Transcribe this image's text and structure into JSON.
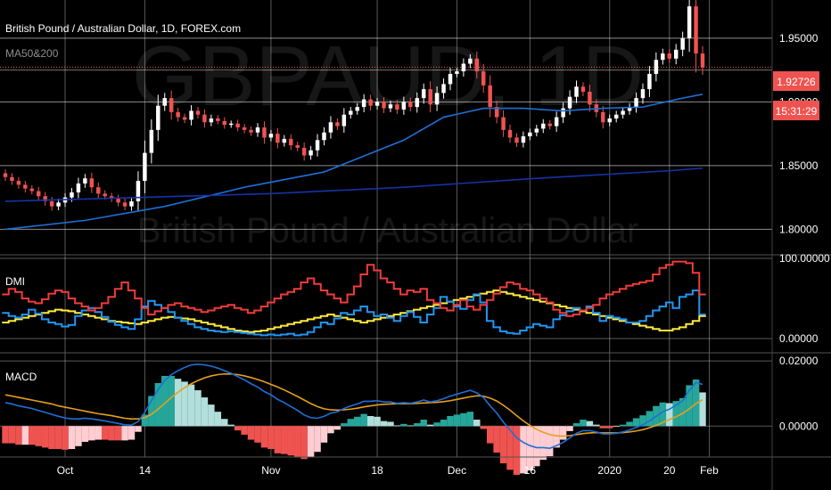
{
  "header": {
    "title": "British Pound / Australian Dollar, 1D, FOREX.com",
    "ma_label": "MA50&200"
  },
  "watermark": {
    "symbol": "GBPAUD, 1D",
    "name": "British Pound / Australian Dollar"
  },
  "price_badges": {
    "last_price": "1.92726",
    "countdown": "15:31:29",
    "color": "#ef5350"
  },
  "colors": {
    "up": "#ffffff",
    "down": "#ef5350",
    "ma50": "#1e6fd8",
    "ma200": "#1533a8",
    "dmi_plus": "#2196f3",
    "dmi_minus": "#f23b3b",
    "adx": "#ffeb3b",
    "macd": "#1e6fd8",
    "signal": "#e5a01e",
    "hist_up_strong": "#26a69a",
    "hist_up_weak": "#b2dfdb",
    "hist_down_strong": "#ef5350",
    "hist_down_weak": "#ffcdd2"
  },
  "chart_data": [
    {
      "type": "candlestick",
      "name": "price",
      "title": "British Pound / Australian Dollar, 1D, FOREX.com",
      "ylim": [
        1.78,
        1.98
      ],
      "y_ticks": [
        "1.95000",
        "1.90000",
        "1.85000",
        "1.80000"
      ],
      "x_ticks": [
        "Oct",
        "14",
        "Nov",
        "18",
        "Dec",
        "16",
        "2020",
        "20",
        "Feb"
      ],
      "closes": [
        1.841,
        1.838,
        1.835,
        1.832,
        1.83,
        1.826,
        1.822,
        1.818,
        1.821,
        1.825,
        1.829,
        1.836,
        1.84,
        1.833,
        1.828,
        1.826,
        1.824,
        1.821,
        1.818,
        1.822,
        1.838,
        1.86,
        1.878,
        1.897,
        1.903,
        1.892,
        1.888,
        1.886,
        1.893,
        1.89,
        1.884,
        1.887,
        1.885,
        1.882,
        1.883,
        1.88,
        1.878,
        1.876,
        1.88,
        1.872,
        1.875,
        1.868,
        1.871,
        1.866,
        1.864,
        1.858,
        1.862,
        1.87,
        1.876,
        1.884,
        1.881,
        1.89,
        1.893,
        1.896,
        1.902,
        1.897,
        1.9,
        1.895,
        1.898,
        1.894,
        1.9,
        1.896,
        1.903,
        1.91,
        1.898,
        1.907,
        1.914,
        1.922,
        1.924,
        1.93,
        1.934,
        1.924,
        1.913,
        1.896,
        1.888,
        1.878,
        1.872,
        1.868,
        1.873,
        1.876,
        1.879,
        1.883,
        1.881,
        1.888,
        1.895,
        1.904,
        1.912,
        1.908,
        1.898,
        1.892,
        1.884,
        1.887,
        1.89,
        1.893,
        1.896,
        1.903,
        1.91,
        1.922,
        1.933,
        1.938,
        1.934,
        1.941,
        1.95,
        1.975,
        1.938,
        1.927
      ]
    },
    {
      "type": "line",
      "name": "MA50&200",
      "series": [
        {
          "name": "",
          "x_index": [
            0,
            12,
            24,
            36,
            48,
            60,
            66,
            72,
            78,
            84,
            90,
            96,
            102,
            105
          ],
          "values": [
            1.8,
            1.807,
            1.818,
            1.833,
            1.845,
            1.87,
            1.888,
            1.895,
            1.895,
            1.893,
            1.895,
            1.896,
            1.903,
            1.906
          ]
        },
        {
          "name": "",
          "x_index": [
            0,
            20,
            40,
            60,
            80,
            100,
            105
          ],
          "values": [
            1.822,
            1.825,
            1.828,
            1.833,
            1.84,
            1.846,
            1.848
          ]
        }
      ]
    },
    {
      "type": "line",
      "name": "DMI",
      "title": "DMI",
      "ylim": [
        0,
        100
      ],
      "y_ticks": [
        "100.00000",
        "0.00000"
      ],
      "series": [
        {
          "name": "",
          "values": [
            32,
            28,
            26,
            30,
            36,
            31,
            24,
            20,
            18,
            15,
            17,
            28,
            35,
            38,
            33,
            27,
            21,
            17,
            14,
            12,
            24,
            40,
            47,
            42,
            38,
            33,
            26,
            22,
            18,
            14,
            12,
            10,
            9,
            8,
            9,
            8,
            7,
            6,
            5,
            4,
            5,
            4,
            5,
            6,
            4,
            5,
            8,
            14,
            20,
            18,
            25,
            32,
            30,
            35,
            40,
            33,
            28,
            30,
            26,
            22,
            28,
            33,
            27,
            20,
            30,
            38,
            52,
            46,
            40,
            37,
            48,
            55,
            45,
            22,
            14,
            9,
            7,
            6,
            10,
            14,
            18,
            16,
            14,
            24,
            29,
            34,
            38,
            35,
            40,
            32,
            22,
            28,
            26,
            24,
            20,
            20,
            22,
            28,
            35,
            40,
            45,
            38,
            52,
            55,
            60,
            30
          ]
        },
        {
          "name": "",
          "values": [
            55,
            62,
            58,
            50,
            46,
            44,
            49,
            56,
            60,
            58,
            50,
            44,
            40,
            35,
            38,
            44,
            52,
            62,
            70,
            60,
            50,
            38,
            30,
            34,
            38,
            42,
            44,
            40,
            38,
            36,
            33,
            35,
            38,
            40,
            42,
            38,
            36,
            32,
            35,
            40,
            45,
            50,
            55,
            58,
            62,
            70,
            75,
            68,
            60,
            55,
            50,
            45,
            55,
            65,
            80,
            92,
            85,
            75,
            70,
            62,
            55,
            60,
            58,
            62,
            48,
            44,
            38,
            35,
            42,
            48,
            40,
            36,
            42,
            48,
            56,
            64,
            70,
            68,
            62,
            60,
            55,
            50,
            45,
            36,
            32,
            28,
            30,
            35,
            38,
            42,
            50,
            55,
            58,
            62,
            66,
            68,
            70,
            72,
            80,
            88,
            92,
            96,
            96,
            94,
            82,
            55
          ]
        },
        {
          "name": "",
          "values": [
            20,
            22,
            24,
            26,
            28,
            30,
            32,
            34,
            36,
            35,
            34,
            32,
            30,
            28,
            26,
            24,
            22,
            21,
            20,
            19,
            18,
            20,
            22,
            24,
            26,
            27,
            26,
            25,
            24,
            22,
            20,
            18,
            16,
            14,
            12,
            10,
            9,
            8,
            9,
            10,
            12,
            14,
            16,
            18,
            20,
            22,
            24,
            26,
            28,
            30,
            28,
            26,
            24,
            22,
            20,
            22,
            24,
            26,
            28,
            30,
            32,
            34,
            36,
            38,
            40,
            42,
            44,
            46,
            48,
            50,
            52,
            54,
            56,
            58,
            60,
            58,
            56,
            54,
            52,
            50,
            48,
            46,
            44,
            42,
            40,
            38,
            36,
            34,
            32,
            30,
            28,
            26,
            24,
            22,
            20,
            18,
            16,
            14,
            12,
            10,
            10,
            12,
            14,
            18,
            22,
            28
          ]
        }
      ]
    },
    {
      "type": "line",
      "name": "MACD",
      "title": "MACD",
      "ylim": [
        -0.0095,
        0.0225
      ],
      "y_ticks": [
        "0.02000",
        "0.00000"
      ],
      "series": [
        {
          "name": "",
          "values": [
            0.0072,
            0.0068,
            0.0062,
            0.0058,
            0.0054,
            0.0048,
            0.0042,
            0.0036,
            0.003,
            0.0025,
            0.0022,
            0.0022,
            0.0024,
            0.0022,
            0.0019,
            0.0016,
            0.0012,
            0.0008,
            0.0004,
            0.0003,
            0.0014,
            0.0042,
            0.0078,
            0.0112,
            0.014,
            0.0158,
            0.017,
            0.018,
            0.0188,
            0.019,
            0.0188,
            0.0184,
            0.0178,
            0.017,
            0.0162,
            0.0152,
            0.0142,
            0.013,
            0.012,
            0.0106,
            0.0096,
            0.0082,
            0.0072,
            0.006,
            0.0048,
            0.0034,
            0.0026,
            0.0024,
            0.003,
            0.004,
            0.0044,
            0.0054,
            0.0062,
            0.0068,
            0.0076,
            0.0076,
            0.0078,
            0.0074,
            0.0074,
            0.007,
            0.0072,
            0.007,
            0.0074,
            0.008,
            0.0074,
            0.0078,
            0.0084,
            0.0092,
            0.0098,
            0.0104,
            0.011,
            0.0102,
            0.0088,
            0.0062,
            0.004,
            0.0012,
            -0.0012,
            -0.0036,
            -0.005,
            -0.006,
            -0.0066,
            -0.0066,
            -0.0068,
            -0.006,
            -0.005,
            -0.0036,
            -0.0022,
            -0.0014,
            -0.0014,
            -0.0018,
            -0.0024,
            -0.0024,
            -0.0022,
            -0.0018,
            -0.0012,
            -0.0004,
            0.0004,
            0.0016,
            0.003,
            0.0044,
            0.0052,
            0.0064,
            0.0078,
            0.011,
            0.0134,
            0.0128
          ]
        },
        {
          "name": "",
          "values": [
            0.0096,
            0.0092,
            0.0088,
            0.0084,
            0.008,
            0.0076,
            0.0072,
            0.0068,
            0.0062,
            0.0058,
            0.0054,
            0.005,
            0.0046,
            0.0042,
            0.0038,
            0.0035,
            0.0032,
            0.0028,
            0.0024,
            0.0022,
            0.0022,
            0.0026,
            0.0036,
            0.0052,
            0.007,
            0.0088,
            0.0104,
            0.0118,
            0.013,
            0.014,
            0.0148,
            0.0154,
            0.0158,
            0.016,
            0.016,
            0.0158,
            0.0154,
            0.0149,
            0.0143,
            0.0136,
            0.0128,
            0.012,
            0.0111,
            0.0101,
            0.0091,
            0.008,
            0.0069,
            0.006,
            0.0053,
            0.005,
            0.0049,
            0.005,
            0.0052,
            0.0055,
            0.0059,
            0.0062,
            0.0065,
            0.0067,
            0.0068,
            0.0069,
            0.0069,
            0.0069,
            0.007,
            0.0071,
            0.0072,
            0.0073,
            0.0075,
            0.0078,
            0.0082,
            0.0086,
            0.009,
            0.0093,
            0.0092,
            0.0086,
            0.0077,
            0.0064,
            0.0049,
            0.0032,
            0.0016,
            0.0002,
            -0.001,
            -0.0019,
            -0.0026,
            -0.003,
            -0.0031,
            -0.0029,
            -0.0026,
            -0.0023,
            -0.0021,
            -0.002,
            -0.0021,
            -0.0021,
            -0.0021,
            -0.002,
            -0.0018,
            -0.0015,
            -0.0011,
            -0.0005,
            0.0002,
            0.0011,
            0.002,
            0.0029,
            0.0039,
            0.0053,
            0.0069,
            0.0081
          ]
        }
      ]
    }
  ]
}
